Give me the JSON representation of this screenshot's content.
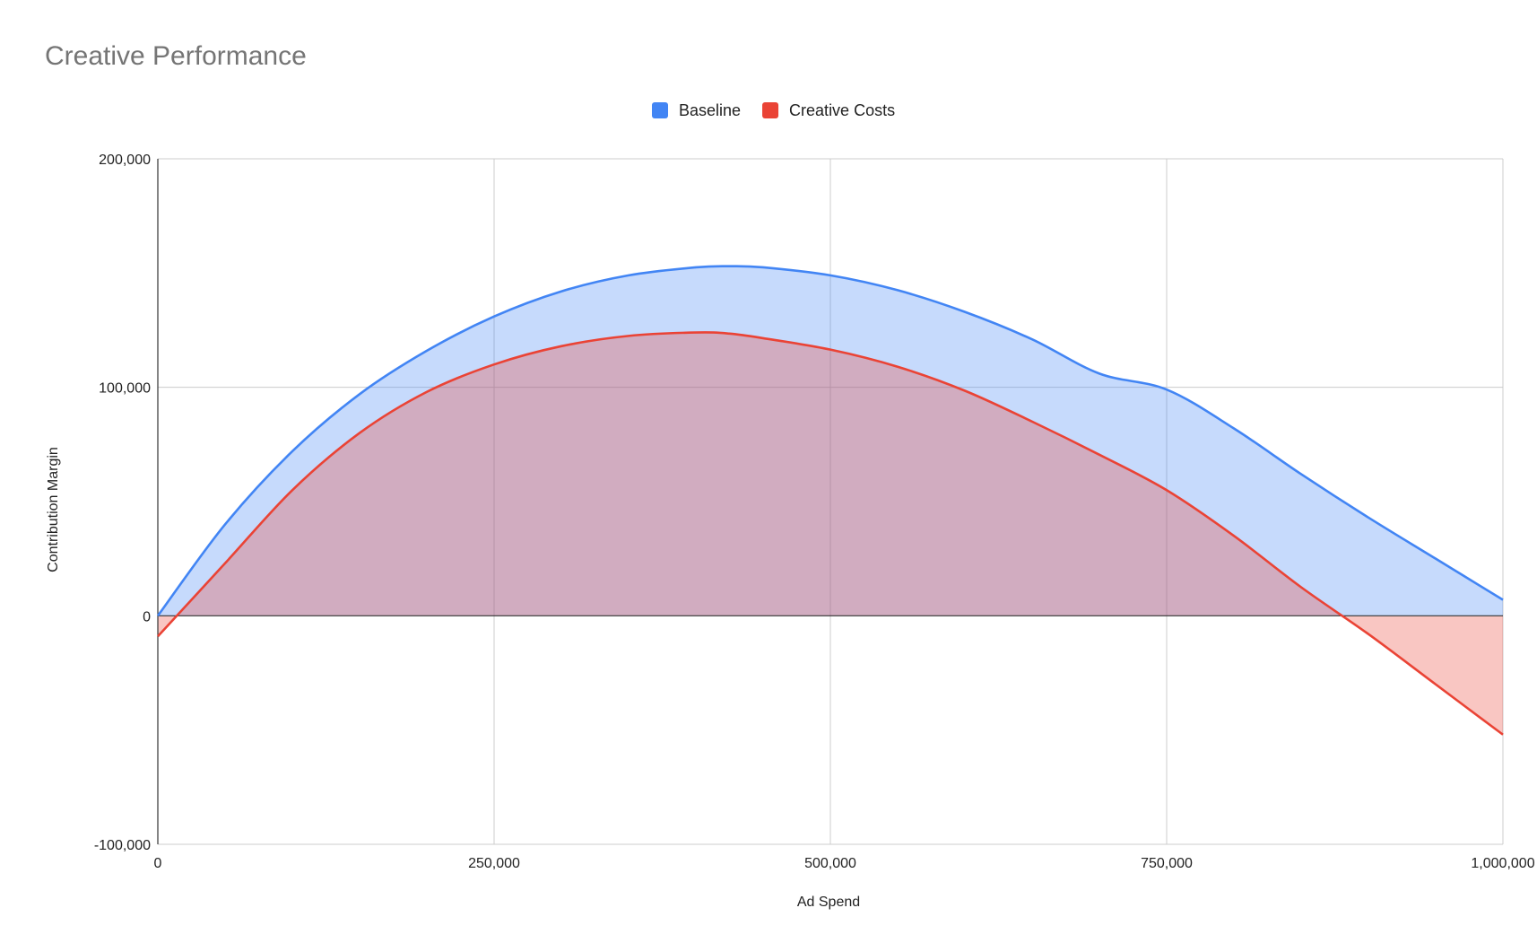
{
  "chart_data": {
    "type": "area",
    "title": "Creative Performance",
    "xlabel": "Ad Spend",
    "ylabel": "Contribution Margin",
    "xlim": [
      0,
      1000000
    ],
    "ylim": [
      -100000,
      200000
    ],
    "x_ticks": [
      0,
      250000,
      500000,
      750000,
      1000000
    ],
    "x_tick_labels": [
      "0",
      "250,000",
      "500,000",
      "750,000",
      "1,000,000"
    ],
    "y_ticks": [
      -100000,
      0,
      100000,
      200000
    ],
    "y_tick_labels": [
      "-100,000",
      "0",
      "100,000",
      "200,000"
    ],
    "grid": true,
    "legend_position": "top",
    "x": [
      0,
      50000,
      100000,
      150000,
      200000,
      250000,
      300000,
      350000,
      400000,
      425000,
      450000,
      500000,
      550000,
      600000,
      650000,
      700000,
      750000,
      800000,
      850000,
      900000,
      950000,
      1000000
    ],
    "series": [
      {
        "name": "Baseline",
        "color": "#4285f4",
        "fill": "#c6daf9",
        "values": [
          0,
          40000,
          72000,
          97000,
          116000,
          131000,
          142000,
          149000,
          152500,
          153000,
          152500,
          149000,
          142500,
          133000,
          121000,
          106000,
          99000,
          82000,
          62000,
          43000,
          25000,
          7000
        ]
      },
      {
        "name": "Creative Costs",
        "color": "#ea4335",
        "fill": "#f8c7c2",
        "values": [
          -9000,
          23000,
          55000,
          80000,
          98000,
          110000,
          118000,
          122500,
          124000,
          123500,
          121500,
          116500,
          109000,
          98500,
          85000,
          70500,
          55000,
          35000,
          12500,
          -8000,
          -30000,
          -52000
        ]
      }
    ]
  }
}
